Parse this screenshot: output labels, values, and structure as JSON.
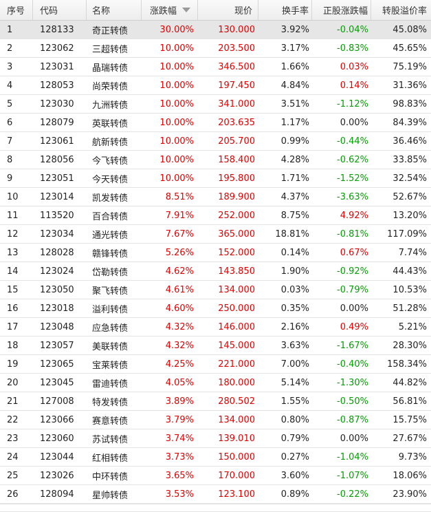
{
  "headers": {
    "idx": "序号",
    "code": "代码",
    "name": "名称",
    "change": "涨跌幅",
    "price": "现价",
    "turnover": "换手率",
    "stock_change": "正股涨跌幅",
    "premium": "转股溢价率"
  },
  "sort_icon": "sort-descending-icon",
  "colors": {
    "up": "#e00000",
    "down": "#00a000",
    "flat": "#222222"
  },
  "rows": [
    {
      "idx": "1",
      "code": "128133",
      "name": "奇正转债",
      "change": "30.00%",
      "price": "130.000",
      "turnover": "3.92%",
      "stock_change": "-0.04%",
      "premium": "45.08%"
    },
    {
      "idx": "2",
      "code": "123062",
      "name": "三超转债",
      "change": "10.00%",
      "price": "203.500",
      "turnover": "3.17%",
      "stock_change": "-0.83%",
      "premium": "45.65%"
    },
    {
      "idx": "3",
      "code": "123031",
      "name": "晶瑞转债",
      "change": "10.00%",
      "price": "346.500",
      "turnover": "1.66%",
      "stock_change": "0.03%",
      "premium": "75.19%"
    },
    {
      "idx": "4",
      "code": "128053",
      "name": "尚荣转债",
      "change": "10.00%",
      "price": "197.450",
      "turnover": "4.84%",
      "stock_change": "0.14%",
      "premium": "31.36%"
    },
    {
      "idx": "5",
      "code": "123030",
      "name": "九洲转债",
      "change": "10.00%",
      "price": "341.000",
      "turnover": "3.51%",
      "stock_change": "-1.12%",
      "premium": "98.83%"
    },
    {
      "idx": "6",
      "code": "128079",
      "name": "英联转债",
      "change": "10.00%",
      "price": "203.635",
      "turnover": "1.17%",
      "stock_change": "0.00%",
      "premium": "84.39%"
    },
    {
      "idx": "7",
      "code": "123061",
      "name": "航新转债",
      "change": "10.00%",
      "price": "205.700",
      "turnover": "0.99%",
      "stock_change": "-0.44%",
      "premium": "36.46%"
    },
    {
      "idx": "8",
      "code": "128056",
      "name": "今飞转债",
      "change": "10.00%",
      "price": "158.400",
      "turnover": "4.28%",
      "stock_change": "-0.62%",
      "premium": "33.85%"
    },
    {
      "idx": "9",
      "code": "123051",
      "name": "今天转债",
      "change": "10.00%",
      "price": "195.800",
      "turnover": "1.71%",
      "stock_change": "-1.52%",
      "premium": "32.54%"
    },
    {
      "idx": "10",
      "code": "123014",
      "name": "凯发转债",
      "change": "8.51%",
      "price": "189.900",
      "turnover": "4.37%",
      "stock_change": "-3.63%",
      "premium": "52.67%"
    },
    {
      "idx": "11",
      "code": "113520",
      "name": "百合转债",
      "change": "7.91%",
      "price": "252.000",
      "turnover": "8.75%",
      "stock_change": "4.92%",
      "premium": "13.20%"
    },
    {
      "idx": "12",
      "code": "123034",
      "name": "通光转债",
      "change": "7.67%",
      "price": "365.000",
      "turnover": "18.81%",
      "stock_change": "-0.81%",
      "premium": "117.09%"
    },
    {
      "idx": "13",
      "code": "128028",
      "name": "赣锋转债",
      "change": "5.26%",
      "price": "152.000",
      "turnover": "0.14%",
      "stock_change": "0.67%",
      "premium": "7.74%"
    },
    {
      "idx": "14",
      "code": "123024",
      "name": "岱勒转债",
      "change": "4.62%",
      "price": "143.850",
      "turnover": "1.90%",
      "stock_change": "-0.92%",
      "premium": "44.43%"
    },
    {
      "idx": "15",
      "code": "123050",
      "name": "聚飞转债",
      "change": "4.61%",
      "price": "134.000",
      "turnover": "0.03%",
      "stock_change": "-0.79%",
      "premium": "10.53%"
    },
    {
      "idx": "16",
      "code": "123018",
      "name": "溢利转债",
      "change": "4.60%",
      "price": "250.000",
      "turnover": "0.35%",
      "stock_change": "0.00%",
      "premium": "51.28%"
    },
    {
      "idx": "17",
      "code": "123048",
      "name": "应急转债",
      "change": "4.32%",
      "price": "146.000",
      "turnover": "2.16%",
      "stock_change": "0.49%",
      "premium": "5.21%"
    },
    {
      "idx": "18",
      "code": "123057",
      "name": "美联转债",
      "change": "4.32%",
      "price": "145.000",
      "turnover": "3.63%",
      "stock_change": "-1.67%",
      "premium": "28.30%"
    },
    {
      "idx": "19",
      "code": "123065",
      "name": "宝莱转债",
      "change": "4.25%",
      "price": "221.000",
      "turnover": "7.00%",
      "stock_change": "-0.40%",
      "premium": "158.34%"
    },
    {
      "idx": "20",
      "code": "123045",
      "name": "雷迪转债",
      "change": "4.05%",
      "price": "180.000",
      "turnover": "5.14%",
      "stock_change": "-1.30%",
      "premium": "44.82%"
    },
    {
      "idx": "21",
      "code": "127008",
      "name": "特发转债",
      "change": "3.89%",
      "price": "280.502",
      "turnover": "1.55%",
      "stock_change": "-0.50%",
      "premium": "56.81%"
    },
    {
      "idx": "22",
      "code": "123066",
      "name": "赛意转债",
      "change": "3.79%",
      "price": "134.000",
      "turnover": "0.80%",
      "stock_change": "-0.87%",
      "premium": "15.75%"
    },
    {
      "idx": "23",
      "code": "123060",
      "name": "苏试转债",
      "change": "3.74%",
      "price": "139.010",
      "turnover": "0.79%",
      "stock_change": "0.00%",
      "premium": "27.67%"
    },
    {
      "idx": "24",
      "code": "123044",
      "name": "红相转债",
      "change": "3.73%",
      "price": "150.000",
      "turnover": "0.27%",
      "stock_change": "-1.04%",
      "premium": "9.73%"
    },
    {
      "idx": "25",
      "code": "123026",
      "name": "中环转债",
      "change": "3.65%",
      "price": "170.000",
      "turnover": "3.60%",
      "stock_change": "-1.07%",
      "premium": "18.06%"
    },
    {
      "idx": "26",
      "code": "128094",
      "name": "星帅转债",
      "change": "3.53%",
      "price": "123.100",
      "turnover": "0.89%",
      "stock_change": "-0.22%",
      "premium": "23.90%"
    }
  ]
}
